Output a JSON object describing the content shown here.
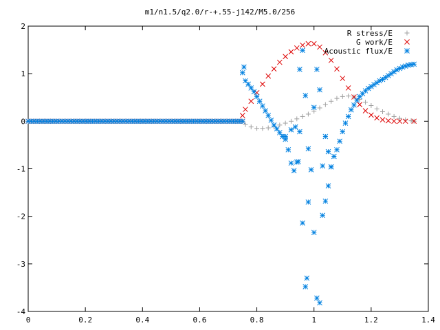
{
  "chart_data": {
    "type": "scatter",
    "title": "m1/n1.5/q2.0/r-+.55-j142/M5.0/256",
    "xlabel": "",
    "ylabel": "",
    "xlim": [
      0,
      1.4
    ],
    "ylim": [
      -4,
      2
    ],
    "x_ticks": [
      "0",
      "0.2",
      "0.4",
      "0.6",
      "0.8",
      "1",
      "1.2",
      "1.4"
    ],
    "y_ticks": [
      "2",
      "1",
      "0",
      "-1",
      "-2",
      "-3",
      "-4"
    ],
    "x_tick_values": [
      0,
      0.2,
      0.4,
      0.6,
      0.8,
      1.0,
      1.2,
      1.4
    ],
    "y_tick_values": [
      2,
      1,
      0,
      -1,
      -2,
      -3,
      -4
    ],
    "grid": false,
    "legend_position": "top-right",
    "series": [
      {
        "name": "R stress/E",
        "marker": "plus",
        "color": "#a0a0a0",
        "points": [
          [
            0.75,
            0.0
          ],
          [
            0.76,
            -0.07
          ],
          [
            0.78,
            -0.12
          ],
          [
            0.8,
            -0.15
          ],
          [
            0.82,
            -0.15
          ],
          [
            0.84,
            -0.14
          ],
          [
            0.86,
            -0.12
          ],
          [
            0.88,
            -0.08
          ],
          [
            0.9,
            -0.04
          ],
          [
            0.92,
            0.0
          ],
          [
            0.94,
            0.05
          ],
          [
            0.96,
            0.1
          ],
          [
            0.98,
            0.15
          ],
          [
            1.0,
            0.21
          ],
          [
            1.02,
            0.28
          ],
          [
            1.04,
            0.35
          ],
          [
            1.06,
            0.42
          ],
          [
            1.08,
            0.48
          ],
          [
            1.1,
            0.52
          ],
          [
            1.12,
            0.53
          ],
          [
            1.14,
            0.51
          ],
          [
            1.16,
            0.46
          ],
          [
            1.18,
            0.4
          ],
          [
            1.2,
            0.33
          ],
          [
            1.22,
            0.26
          ],
          [
            1.24,
            0.2
          ],
          [
            1.26,
            0.15
          ],
          [
            1.28,
            0.1
          ],
          [
            1.3,
            0.06
          ],
          [
            1.32,
            0.03
          ],
          [
            1.34,
            0.01
          ],
          [
            1.35,
            0.0
          ]
        ]
      },
      {
        "name": "G work/E",
        "marker": "cross",
        "color": "#dd0000",
        "points": [
          [
            0.75,
            0.12
          ],
          [
            0.76,
            0.25
          ],
          [
            0.78,
            0.42
          ],
          [
            0.8,
            0.6
          ],
          [
            0.82,
            0.78
          ],
          [
            0.84,
            0.95
          ],
          [
            0.86,
            1.1
          ],
          [
            0.88,
            1.24
          ],
          [
            0.9,
            1.36
          ],
          [
            0.92,
            1.46
          ],
          [
            0.94,
            1.54
          ],
          [
            0.96,
            1.6
          ],
          [
            0.98,
            1.63
          ],
          [
            1.0,
            1.63
          ],
          [
            1.02,
            1.56
          ],
          [
            1.04,
            1.44
          ],
          [
            1.06,
            1.28
          ],
          [
            1.08,
            1.1
          ],
          [
            1.1,
            0.9
          ],
          [
            1.12,
            0.7
          ],
          [
            1.14,
            0.51
          ],
          [
            1.16,
            0.35
          ],
          [
            1.18,
            0.22
          ],
          [
            1.2,
            0.13
          ],
          [
            1.22,
            0.07
          ],
          [
            1.24,
            0.03
          ],
          [
            1.26,
            0.01
          ],
          [
            1.28,
            0.0
          ],
          [
            1.3,
            0.0
          ],
          [
            1.32,
            0.0
          ],
          [
            1.35,
            0.0
          ]
        ]
      },
      {
        "name": "Acoustic flux/E",
        "marker": "star",
        "color": "#0080e0",
        "points": [
          [
            0.75,
            1.02
          ],
          [
            0.755,
            1.14
          ],
          [
            0.76,
            0.85
          ],
          [
            0.77,
            0.78
          ],
          [
            0.78,
            0.7
          ],
          [
            0.79,
            0.62
          ],
          [
            0.8,
            0.52
          ],
          [
            0.81,
            0.42
          ],
          [
            0.82,
            0.32
          ],
          [
            0.83,
            0.22
          ],
          [
            0.84,
            0.12
          ],
          [
            0.85,
            0.02
          ],
          [
            0.86,
            -0.08
          ],
          [
            0.87,
            -0.16
          ],
          [
            0.88,
            -0.24
          ],
          [
            0.89,
            -0.32
          ],
          [
            0.9,
            -0.38
          ],
          [
            0.91,
            -0.6
          ],
          [
            0.92,
            -0.88
          ],
          [
            0.93,
            -1.04
          ],
          [
            0.94,
            -0.86
          ],
          [
            0.95,
            -0.22
          ],
          [
            0.96,
            -2.14
          ],
          [
            0.97,
            -3.48
          ],
          [
            0.975,
            -3.3
          ],
          [
            0.98,
            -1.7
          ],
          [
            0.99,
            -1.02
          ],
          [
            1.0,
            -2.34
          ],
          [
            1.01,
            -3.72
          ],
          [
            1.02,
            -3.82
          ],
          [
            1.03,
            -1.98
          ],
          [
            1.04,
            -1.68
          ],
          [
            1.05,
            -1.36
          ],
          [
            1.06,
            -0.96
          ],
          [
            1.07,
            -0.74
          ],
          [
            1.08,
            -0.6
          ],
          [
            1.09,
            -0.42
          ],
          [
            1.1,
            -0.22
          ],
          [
            1.11,
            -0.04
          ],
          [
            1.12,
            0.1
          ],
          [
            1.13,
            0.24
          ],
          [
            1.14,
            0.34
          ],
          [
            1.15,
            0.44
          ],
          [
            1.16,
            0.52
          ],
          [
            1.17,
            0.58
          ],
          [
            1.18,
            0.64
          ],
          [
            1.19,
            0.69
          ],
          [
            1.2,
            0.73
          ],
          [
            1.21,
            0.77
          ],
          [
            1.22,
            0.81
          ],
          [
            1.23,
            0.85
          ],
          [
            1.24,
            0.88
          ],
          [
            1.25,
            0.92
          ],
          [
            1.26,
            0.96
          ],
          [
            1.27,
            1.0
          ],
          [
            1.28,
            1.04
          ],
          [
            1.29,
            1.08
          ],
          [
            1.3,
            1.11
          ],
          [
            1.31,
            1.14
          ],
          [
            1.32,
            1.16
          ],
          [
            1.33,
            1.18
          ],
          [
            1.34,
            1.19
          ],
          [
            1.35,
            1.2
          ],
          [
            0.9,
            -0.32
          ],
          [
            0.95,
            1.09
          ],
          [
            0.96,
            1.49
          ],
          [
            0.97,
            0.54
          ],
          [
            0.98,
            -0.58
          ],
          [
            1.0,
            0.29
          ],
          [
            1.01,
            1.09
          ],
          [
            1.02,
            0.66
          ],
          [
            1.03,
            -0.94
          ],
          [
            1.04,
            -0.32
          ],
          [
            1.05,
            -0.64
          ],
          [
            1.06,
            -0.96
          ],
          [
            0.935,
            -0.12
          ],
          [
            0.945,
            -0.85
          ],
          [
            0.92,
            -0.18
          ]
        ]
      }
    ]
  }
}
